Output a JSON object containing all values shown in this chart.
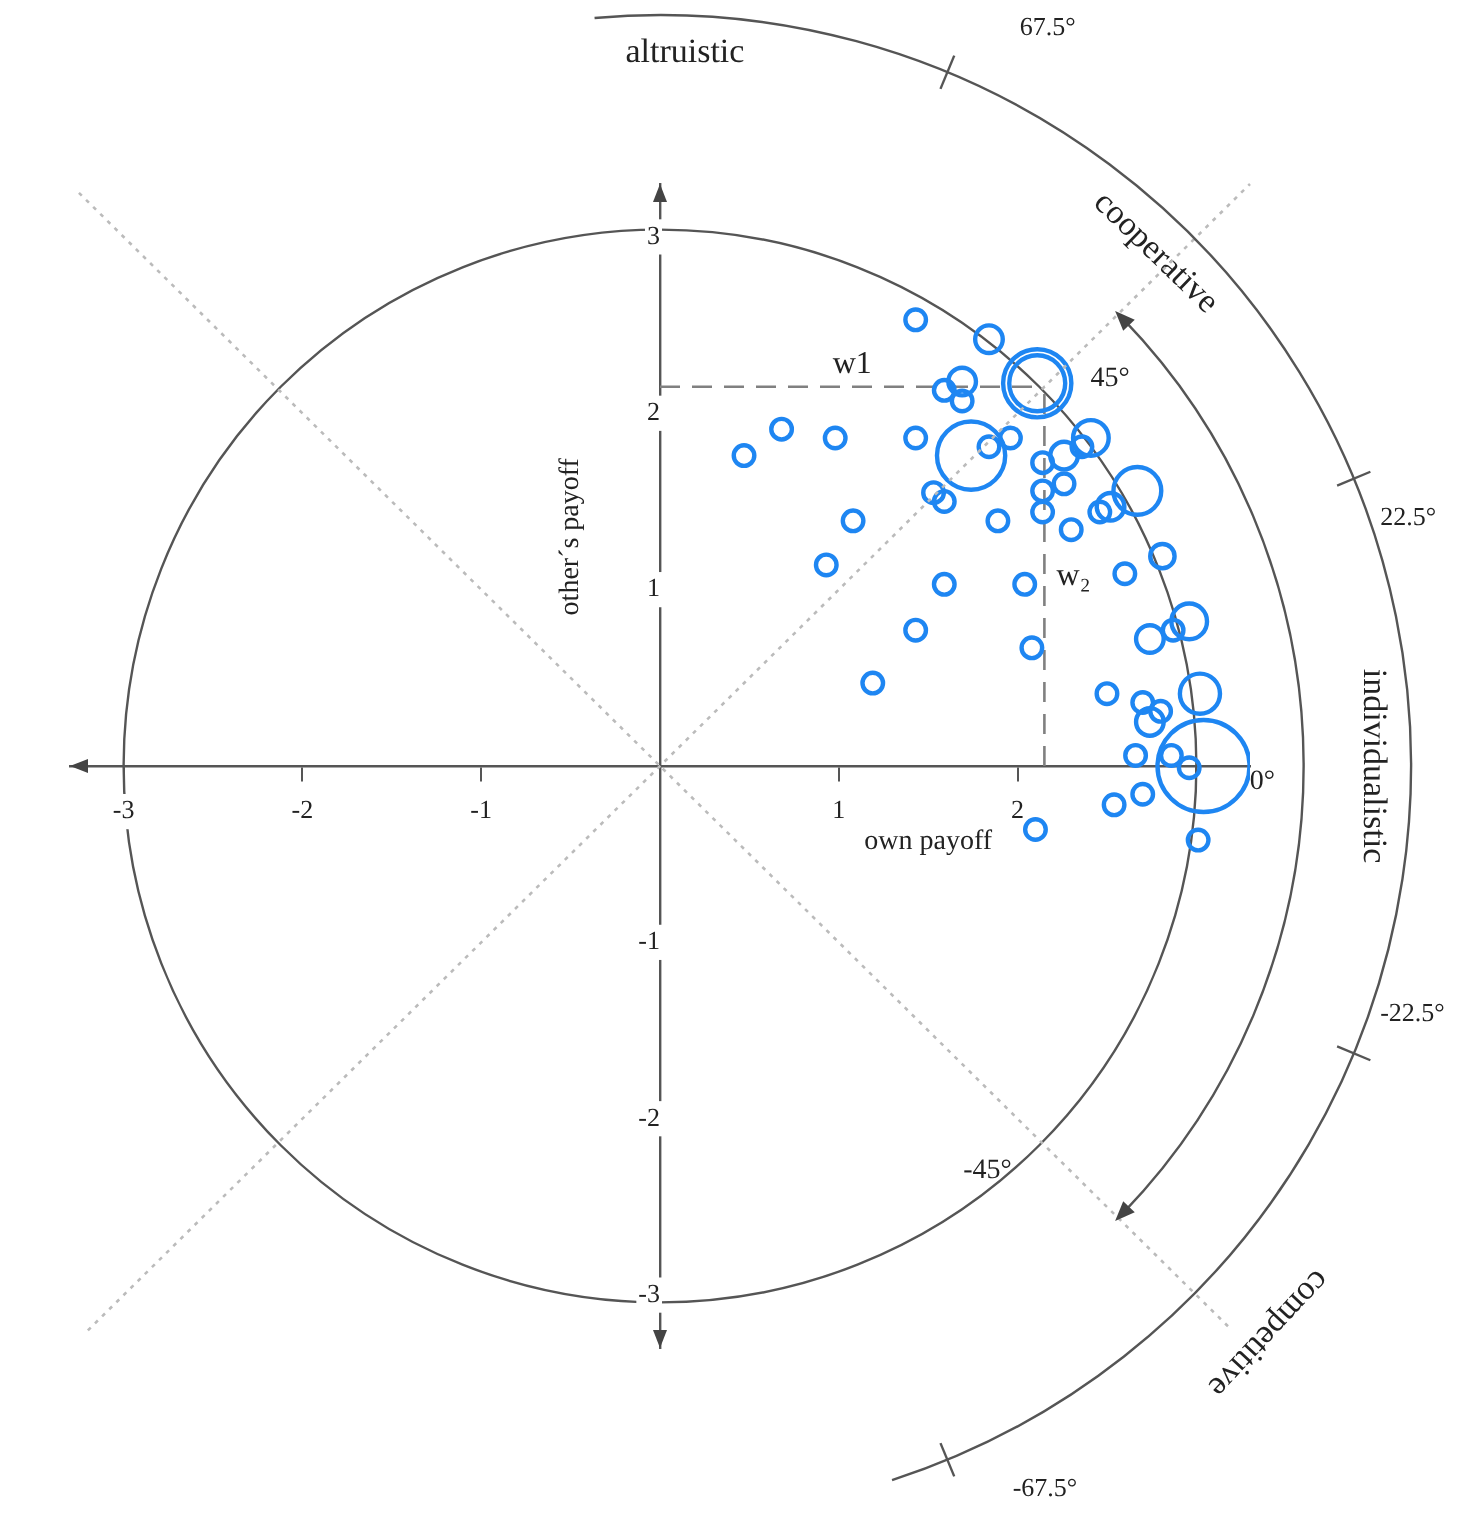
{
  "chart_data": {
    "type": "bubble",
    "xlabel": "own payoff",
    "ylabel": "other´s payoff",
    "color": "#1e86f2",
    "series": [
      {
        "type": "line",
        "x": [
          -3.2,
          3.3
        ],
        "values": [
          -3.2,
          3.3
        ],
        "color": "#bbbbbb",
        "line_style": "dotted"
      },
      {
        "type": "line",
        "x": [
          -3.25,
          3.2
        ],
        "values": [
          3.25,
          -3.2
        ],
        "color": "#bbbbbb",
        "line_style": "dotted"
      }
    ],
    "xlim": [
      -3.3,
      3.3
    ],
    "ylim": [
      -3.3,
      3.3
    ],
    "xticks": [
      -3,
      -2,
      -1,
      1,
      2,
      {
        "value": 3,
        "label": null
      }
    ],
    "yticks": [
      -3,
      -2,
      -1,
      1,
      2,
      3
    ],
    "grid": false,
    "legend": false,
    "ref_lines": [
      {
        "axis": "y",
        "value": 2.15,
        "label": "w1",
        "line_style": "dashed",
        "color": "#808080"
      },
      {
        "axis": "x",
        "value": 2.15,
        "label": "w₂",
        "line_style": "dashed",
        "color": "#808080"
      }
    ],
    "annotations": [
      "altruistic",
      "cooperative",
      "individualistic",
      "competitive",
      "67.5°",
      "22.5°",
      "-22.5°",
      "-67.5°",
      "45°",
      "0°",
      "-45°"
    ],
    "x": [
      1.43,
      1.84,
      1.69,
      1.59,
      1.69,
      0.68,
      0.98,
      0.47,
      1.43,
      1.74,
      1.84,
      1.96,
      1.53,
      1.59,
      1.08,
      1.89,
      0.93,
      1.59,
      2.04,
      1.43,
      2.08,
      1.19,
      2.11,
      2.11,
      2.41,
      2.14,
      2.26,
      2.36,
      2.14,
      2.26,
      2.67,
      2.14,
      2.46,
      2.52,
      2.3,
      2.81,
      2.6,
      2.96,
      2.87,
      2.74,
      3.02,
      2.5,
      2.7,
      2.8,
      2.74,
      3.04,
      2.66,
      2.86,
      2.96,
      2.7,
      2.54,
      2.1,
      3.01
    ],
    "values": [
      2.53,
      2.42,
      2.18,
      2.13,
      2.07,
      1.91,
      1.86,
      1.76,
      1.86,
      1.76,
      1.81,
      1.86,
      1.55,
      1.5,
      1.39,
      1.39,
      1.14,
      1.03,
      1.03,
      0.77,
      0.67,
      0.47,
      2.17,
      2.17,
      1.86,
      1.72,
      1.76,
      1.81,
      1.56,
      1.6,
      1.56,
      1.44,
      1.44,
      1.47,
      1.34,
      1.19,
      1.09,
      0.82,
      0.77,
      0.72,
      0.41,
      0.41,
      0.36,
      0.31,
      0.25,
      0,
      0.06,
      0.06,
      -0.01,
      -0.16,
      -0.22,
      -0.36,
      -0.42
    ],
    "sizes": [
      0.05,
      0.09,
      0.09,
      0.05,
      0.05,
      0.05,
      0.05,
      0.05,
      0.05,
      0.55,
      0.05,
      0.05,
      0.05,
      0.05,
      0.05,
      0.05,
      0.05,
      0.05,
      0.05,
      0.05,
      0.05,
      0.05,
      0.55,
      0.37,
      0.15,
      0.05,
      0.09,
      0.05,
      0.05,
      0.05,
      0.27,
      0.05,
      0.05,
      0.09,
      0.05,
      0.07,
      0.05,
      0.15,
      0.05,
      0.09,
      0.19,
      0.05,
      0.05,
      0.05,
      0.09,
      1,
      0.05,
      0.05,
      0.05,
      0.05,
      0.05,
      0.05,
      0.05
    ]
  }
}
